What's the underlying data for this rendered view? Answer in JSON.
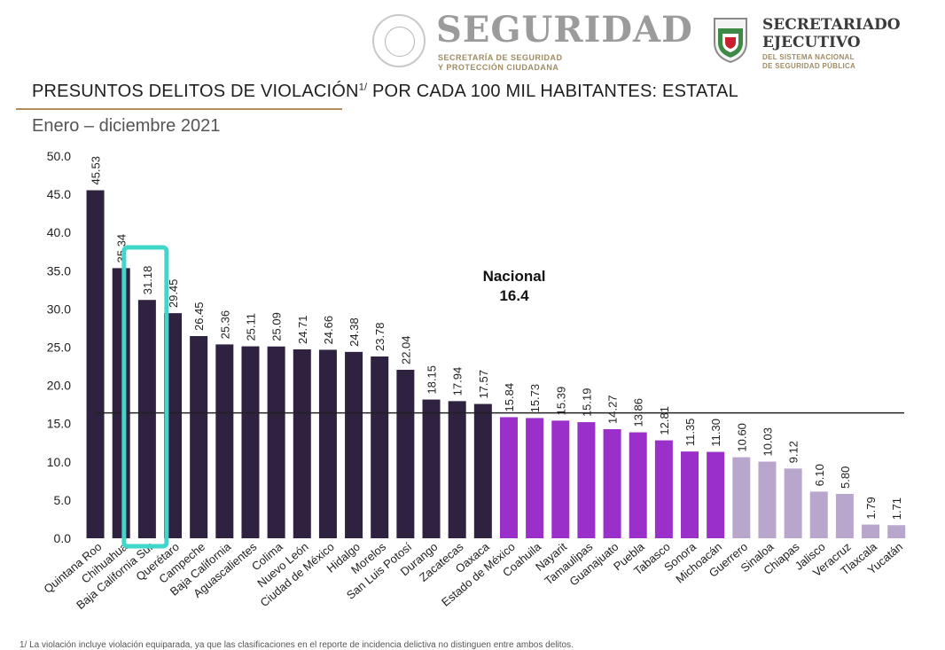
{
  "header": {
    "seguridad_title": "SEGURIDAD",
    "seguridad_sub_1": "SECRETARÍA DE SEGURIDAD",
    "seguridad_sub_2": "Y PROTECCIÓN CIUDADANA",
    "sesnsp_title_1": "SECRETARIADO",
    "sesnsp_title_2": "EJECUTIVO",
    "sesnsp_sub_1": "DEL SISTEMA NACIONAL",
    "sesnsp_sub_2": "DE SEGURIDAD PÚBLICA"
  },
  "page": {
    "title_main": "PRESUNTOS DELITOS DE VIOLACIÓN",
    "title_sup": "1/",
    "title_rest": " POR CADA 100 MIL HABITANTES: ESTATAL",
    "subtitle": "Enero – diciembre 2021",
    "footnote": "1/ La violación incluye violación equiparada, ya que las clasificaciones en el reporte de incidencia delictiva no distinguen entre ambos delitos."
  },
  "colors": {
    "dark": "#2f2140",
    "purple": "#9b2fc9",
    "light": "#b8a6cc",
    "highlight": "#40d6c9",
    "national_line": "#222222"
  },
  "chart_data": {
    "type": "bar",
    "title": "PRESUNTOS DELITOS DE VIOLACIÓN POR CADA 100 MIL HABITANTES: ESTATAL",
    "subtitle": "Enero – diciembre 2021",
    "ylim": [
      0,
      50
    ],
    "yticks": [
      "0.0",
      "5.0",
      "10.0",
      "15.0",
      "20.0",
      "25.0",
      "30.0",
      "35.0",
      "40.0",
      "45.0",
      "50.0"
    ],
    "grid": false,
    "categories": [
      "Quintana Roo",
      "Chihuahua",
      "Baja California Sur",
      "Querétaro",
      "Campeche",
      "Baja California",
      "Aguascalientes",
      "Colima",
      "Nuevo León",
      "Ciudad de México",
      "Hidalgo",
      "Morelos",
      "San Luis Potosí",
      "Durango",
      "Zacatecas",
      "Oaxaca",
      "Estado de México",
      "Coahuila",
      "Nayarit",
      "Tamaulipas",
      "Guanajuato",
      "Puebla",
      "Tabasco",
      "Sonora",
      "Michoacán",
      "Guerrero",
      "Sinaloa",
      "Chiapas",
      "Jalisco",
      "Veracruz",
      "Tlaxcala",
      "Yucatán"
    ],
    "values": [
      45.53,
      35.34,
      31.18,
      29.45,
      26.45,
      25.36,
      25.11,
      25.09,
      24.71,
      24.66,
      24.38,
      23.78,
      22.04,
      18.15,
      17.94,
      17.57,
      15.84,
      15.73,
      15.39,
      15.19,
      14.27,
      13.86,
      12.81,
      11.35,
      11.3,
      10.6,
      10.03,
      9.12,
      6.1,
      5.8,
      1.79,
      1.71
    ],
    "labels": [
      "45.53",
      "35.34",
      "31.18",
      "29.45",
      "26.45",
      "25.36",
      "25.11",
      "25.09",
      "24.71",
      "24.66",
      "24.38",
      "23.78",
      "22.04",
      "18.15",
      "17.94",
      "17.57",
      "15.84",
      "15.73",
      "15.39",
      "15.19",
      "14.27",
      "13.86",
      "12.81",
      "11.35",
      "11.30",
      "10.60",
      "10.03",
      "9.12",
      "6.10",
      "5.80",
      "1.79",
      "1.71"
    ],
    "color_groups": [
      "dark",
      "dark",
      "dark",
      "dark",
      "dark",
      "dark",
      "dark",
      "dark",
      "dark",
      "dark",
      "dark",
      "dark",
      "dark",
      "dark",
      "dark",
      "dark",
      "purple",
      "purple",
      "purple",
      "purple",
      "purple",
      "purple",
      "purple",
      "purple",
      "purple",
      "light",
      "light",
      "light",
      "light",
      "light",
      "light",
      "light"
    ],
    "highlighted_category": "Baja California Sur",
    "reference_line": {
      "label_1": "Nacional",
      "label_2": "16.4",
      "value": 16.4
    }
  }
}
